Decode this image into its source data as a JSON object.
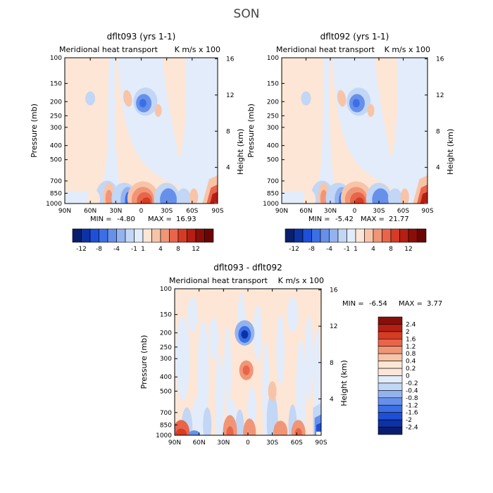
{
  "page_title": "SON",
  "colors": {
    "full_scale": [
      "#0a1e6e",
      "#0c32a6",
      "#1e4fd8",
      "#3a6fe6",
      "#6690ea",
      "#93b3ef",
      "#c2d6f6",
      "#e2ecfb",
      "#fde6d5",
      "#f8c4a8",
      "#f09677",
      "#e8654a",
      "#d63b23",
      "#b51e12",
      "#8a0e08",
      "#6a0505"
    ],
    "diff_scale": [
      "#0a1e6e",
      "#0c32a6",
      "#1e4fd8",
      "#3a6fe6",
      "#6690ea",
      "#93b3ef",
      "#c2d6f6",
      "#e2ecfb",
      "#fde6d5",
      "#f8c4a8",
      "#f09677",
      "#e8654a",
      "#d63b23",
      "#b51e12",
      "#8a0e08"
    ]
  },
  "chart_data": [
    {
      "type": "heatmap",
      "title": "dflt093 (yrs 1-1)",
      "subtitle_left": "Meridional heat transport",
      "subtitle_right": "K m/s x 100",
      "xlabel": "",
      "ylabel": "Pressure (mb)",
      "ylabel_right": "Height (km)",
      "x_ticks": [
        "90N",
        "60N",
        "30N",
        "0",
        "30S",
        "60S",
        "90S"
      ],
      "y_ticks": [
        "100",
        "150",
        "200",
        "250",
        "300",
        "400",
        "500",
        "700",
        "850",
        "1000"
      ],
      "y_ticks_right": [
        "16",
        "12",
        "8",
        "4"
      ],
      "min_label": "MIN =",
      "min": "-4.80",
      "max_label": "MAX =",
      "max": "16.93",
      "legend_labels": [
        "-12",
        "-8",
        "-4",
        "-1",
        "1",
        "4",
        "8",
        "12"
      ]
    },
    {
      "type": "heatmap",
      "title": "dflt092 (yrs 1-1)",
      "subtitle_left": "Meridional heat transport",
      "subtitle_right": "K m/s x 100",
      "xlabel": "",
      "ylabel": "Pressure (mb)",
      "ylabel_right": "Height (km)",
      "x_ticks": [
        "90N",
        "60N",
        "30N",
        "0",
        "30S",
        "60S",
        "90S"
      ],
      "y_ticks": [
        "100",
        "150",
        "200",
        "250",
        "300",
        "400",
        "500",
        "700",
        "850",
        "1000"
      ],
      "y_ticks_right": [
        "16",
        "12",
        "8",
        "4"
      ],
      "min_label": "MIN =",
      "min": "-5.42",
      "max_label": "MAX =",
      "max": "21.77",
      "legend_labels": [
        "-12",
        "-8",
        "-4",
        "-1",
        "1",
        "4",
        "8",
        "12"
      ]
    },
    {
      "type": "heatmap",
      "title": "dflt093 - dflt092",
      "subtitle_left": "Meridional heat transport",
      "subtitle_right": "K m/s x 100",
      "xlabel": "",
      "ylabel": "Pressure (mb)",
      "ylabel_right": "Height (km)",
      "x_ticks": [
        "90N",
        "60N",
        "30N",
        "0",
        "30S",
        "60S",
        "90S"
      ],
      "y_ticks": [
        "100",
        "150",
        "200",
        "250",
        "300",
        "400",
        "500",
        "700",
        "850",
        "1000"
      ],
      "y_ticks_right": [
        "16",
        "12",
        "8",
        "4"
      ],
      "min_label": "MIN =",
      "min": "-6.54",
      "max_label": "MAX =",
      "max": "3.77",
      "legend_labels": [
        "2.4",
        "2",
        "1.6",
        "1.2",
        "0.8",
        "0.4",
        "0.2",
        "0",
        "-0.2",
        "-0.4",
        "-0.8",
        "-1.2",
        "-1.6",
        "-2",
        "-2.4"
      ]
    }
  ]
}
